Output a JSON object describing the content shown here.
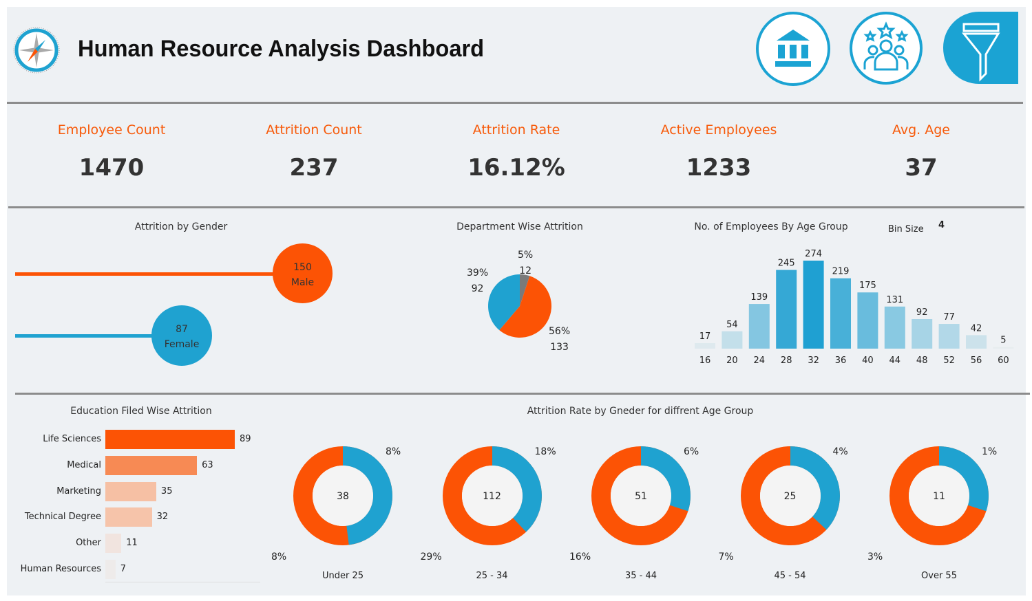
{
  "header": {
    "title": "Human Resource Analysis Dashboard",
    "icons": [
      "compass-logo-icon",
      "bank-icon",
      "team-stars-icon",
      "filter-icon"
    ]
  },
  "colors": {
    "orange": "#fc5305",
    "blue": "#1fa2d0",
    "gray": "#7a7a7a",
    "kpi_label": "#f75a0a"
  },
  "kpis": [
    {
      "label": "Employee Count",
      "value": "1470"
    },
    {
      "label": "Attrition Count",
      "value": "237"
    },
    {
      "label": "Attrition Rate",
      "value": "16.12%"
    },
    {
      "label": "Active Employees",
      "value": "1233"
    },
    {
      "label": "Avg. Age",
      "value": "37"
    }
  ],
  "gender": {
    "title": "Attrition by Gender",
    "items": [
      {
        "value": "150",
        "label": "Male",
        "num": 150
      },
      {
        "value": "87",
        "label": "Female",
        "num": 87
      }
    ]
  },
  "department": {
    "title": "Department Wise Attrition",
    "slices": [
      {
        "pct": "5%",
        "value": "12",
        "num": 12,
        "color": "#7a7a7a"
      },
      {
        "pct": "56%",
        "value": "133",
        "num": 133,
        "color": "#fc5305"
      },
      {
        "pct": "39%",
        "value": "92",
        "num": 92,
        "color": "#1fa2d0"
      }
    ]
  },
  "chart_data": {
    "type": "bar",
    "title": "No. of Employees By Age Group",
    "bin_size_label": "Bin Size",
    "bin_size": "4",
    "categories": [
      "16",
      "20",
      "24",
      "28",
      "32",
      "36",
      "40",
      "44",
      "48",
      "52",
      "56",
      "60"
    ],
    "values": [
      17,
      54,
      139,
      245,
      274,
      219,
      175,
      131,
      92,
      77,
      42,
      5
    ]
  },
  "education": {
    "title": "Education Filed Wise Attrition",
    "items": [
      {
        "label": "Life Sciences",
        "value": "89",
        "num": 89,
        "color": "#fc5305"
      },
      {
        "label": "Medical",
        "value": "63",
        "num": 63,
        "color": "#f78a54"
      },
      {
        "label": "Marketing",
        "value": "35",
        "num": 35,
        "color": "#f6c0a4"
      },
      {
        "label": "Technical Degree",
        "value": "32",
        "num": 32,
        "color": "#f6c4aa"
      },
      {
        "label": "Other",
        "value": "11",
        "num": 11,
        "color": "#f1e4df"
      },
      {
        "label": "Human Resources",
        "value": "7",
        "num": 7,
        "color": "#eeebea"
      }
    ]
  },
  "age_gender": {
    "title": "Attrition Rate by Gneder for diffrent Age Group",
    "groups": [
      {
        "label": "Under 25",
        "total": "38",
        "female_pct": "8%",
        "male_pct": "8%",
        "female_share": 0.48
      },
      {
        "label": "25 - 34",
        "total": "112",
        "female_pct": "18%",
        "male_pct": "29%",
        "female_share": 0.38
      },
      {
        "label": "35 - 44",
        "total": "51",
        "female_pct": "6%",
        "male_pct": "16%",
        "female_share": 0.3
      },
      {
        "label": "45 - 54",
        "total": "25",
        "female_pct": "4%",
        "male_pct": "7%",
        "female_share": 0.37
      },
      {
        "label": "Over 55",
        "total": "11",
        "female_pct": "1%",
        "male_pct": "3%",
        "female_share": 0.3
      }
    ]
  }
}
